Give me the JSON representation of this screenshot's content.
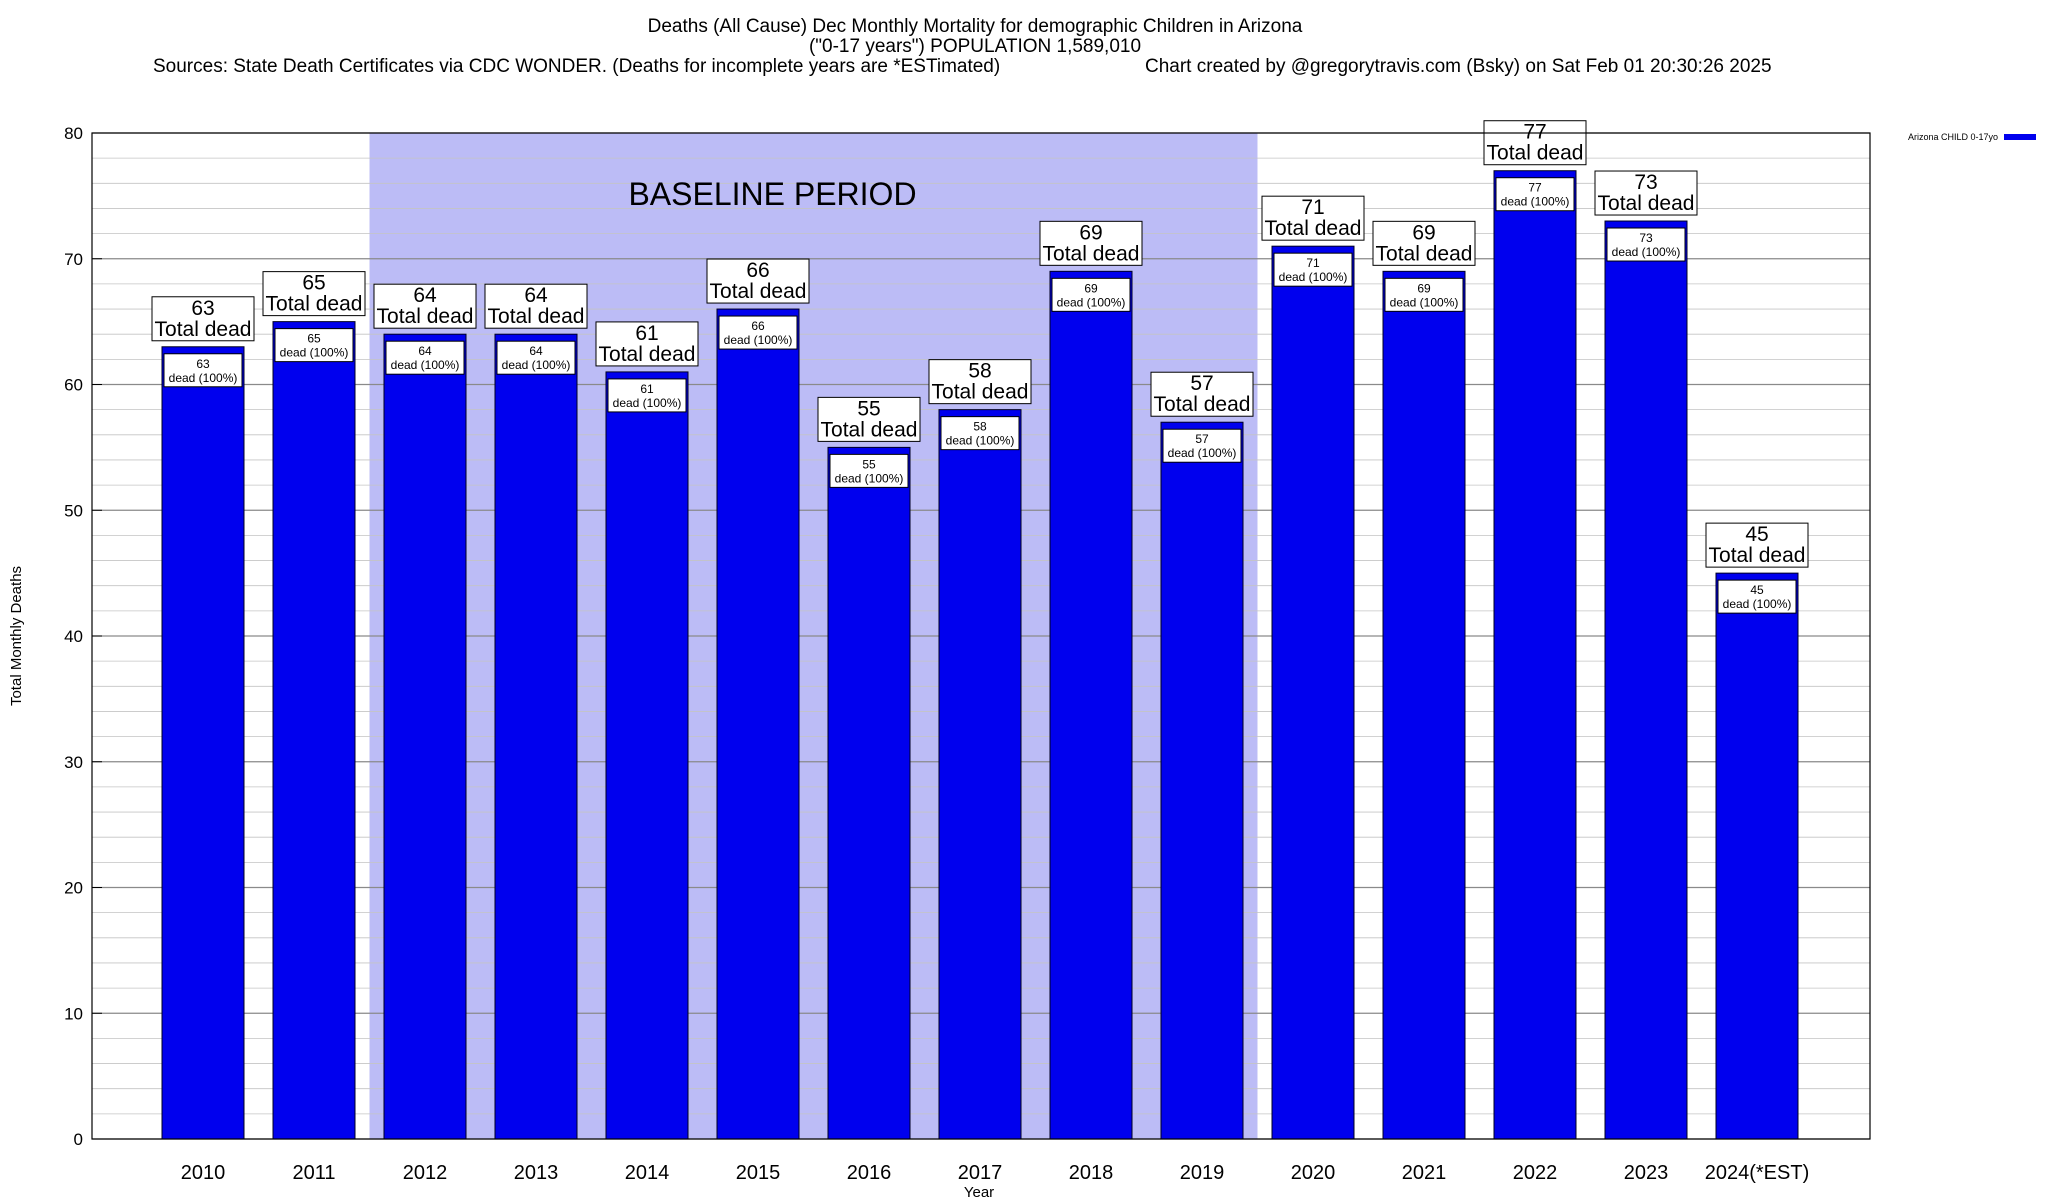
{
  "title": {
    "line1": "Deaths (All Cause) Dec Monthly Mortality for demographic Children in Arizona",
    "line2": "(\"0-17 years\") POPULATION 1,589,010",
    "line3_left": "Sources: State Death Certificates via CDC WONDER. (Deaths for incomplete years are *ESTimated)",
    "line3_right": "Chart created by @gregorytravis.com (Bsky) on Sat Feb 01 20:30:26 2025"
  },
  "chart_data": {
    "type": "bar",
    "title": "Deaths (All Cause) Dec Monthly Mortality for demographic Children in Arizona",
    "xlabel": "Year",
    "ylabel": "Total Monthly Deaths",
    "ylim": [
      0,
      80
    ],
    "yticks": [
      0,
      10,
      20,
      30,
      40,
      50,
      60,
      70,
      80
    ],
    "ytick_labels": [
      "0",
      "10",
      "20",
      "30",
      "40",
      "50",
      "60",
      "70",
      "80"
    ],
    "minor_grid_step": 2,
    "grid": true,
    "categories": [
      "2010",
      "2011",
      "2012",
      "2013",
      "2014",
      "2015",
      "2016",
      "2017",
      "2018",
      "2019",
      "2020",
      "2021",
      "2022",
      "2023",
      "2024(*EST)"
    ],
    "series": [
      {
        "name": "Arizona CHILD 0-17yo",
        "color": "#0000ee",
        "values": [
          63,
          65,
          64,
          64,
          61,
          66,
          55,
          58,
          69,
          57,
          71,
          69,
          77,
          73,
          45
        ]
      }
    ],
    "total_labels": [
      "63",
      "65",
      "64",
      "64",
      "61",
      "66",
      "55",
      "58",
      "69",
      "57",
      "71",
      "69",
      "77",
      "73",
      "45"
    ],
    "total_label_suffix": "Total dead",
    "inner_labels": [
      "63",
      "65",
      "64",
      "64",
      "61",
      "66",
      "55",
      "58",
      "69",
      "57",
      "71",
      "69",
      "77",
      "73",
      "45"
    ],
    "inner_label_suffix": "dead (100%)",
    "baseline": {
      "label": "BASELINE PERIOD",
      "start": "2012",
      "end": "2019",
      "color": "#bcbcf6"
    },
    "legend": {
      "placement": "top-right-outside",
      "entries": [
        {
          "label": "Arizona CHILD 0-17yo",
          "color": "#0000ee"
        }
      ]
    }
  }
}
